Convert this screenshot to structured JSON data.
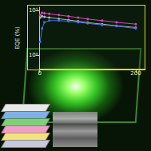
{
  "chart_data": {
    "type": "line",
    "y_label": "EQE (%)",
    "x": [
      1,
      5,
      10,
      20,
      40,
      60,
      80,
      100,
      130,
      160,
      200
    ],
    "series": [
      {
        "color": "#e040c0",
        "values": [
          8,
          9,
          8.8,
          8.5,
          8,
          7.5,
          7,
          6.5,
          6,
          5.5,
          5
        ]
      },
      {
        "color": "#b0b0c8",
        "values": [
          7,
          7.5,
          7.3,
          7,
          6.6,
          6.2,
          5.8,
          5.4,
          5,
          4.6,
          4.2
        ]
      },
      {
        "color": "#4a70e0",
        "values": [
          2,
          4,
          5.5,
          6,
          6,
          5.8,
          5.5,
          5.2,
          4.8,
          4.5,
          4
        ]
      }
    ],
    "xlim": [
      0,
      220
    ],
    "xticks": [
      0,
      200
    ],
    "ylim": [
      0.5,
      12
    ],
    "yticks": [
      {
        "value": 1,
        "label": "10⁰"
      },
      {
        "value": 10,
        "label": "10¹"
      }
    ],
    "log": "y",
    "grid": false,
    "marker": "circle"
  }
}
